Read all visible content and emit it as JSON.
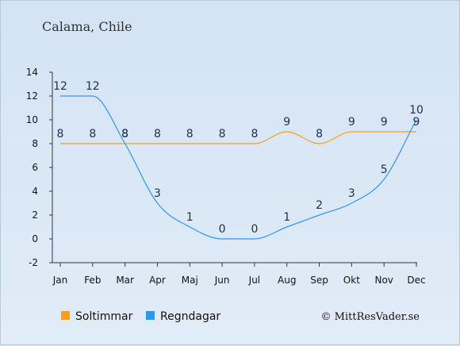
{
  "chart_data": {
    "type": "line",
    "title": "Calama, Chile",
    "categories": [
      "Jan",
      "Feb",
      "Mar",
      "Apr",
      "Maj",
      "Jun",
      "Jul",
      "Aug",
      "Sep",
      "Okt",
      "Nov",
      "Dec"
    ],
    "ylim": [
      -2,
      14
    ],
    "yticks": [
      -2,
      0,
      2,
      4,
      6,
      8,
      10,
      12,
      14
    ],
    "grid": false,
    "legend_position": "bottom-left",
    "series": [
      {
        "name": "Soltimmar",
        "color": "#f5a01a",
        "values": [
          8,
          8,
          8,
          8,
          8,
          8,
          8,
          9,
          8,
          9,
          9,
          9
        ]
      },
      {
        "name": "Regndagar",
        "color": "#2f96e8",
        "values": [
          12,
          12,
          8,
          3,
          1,
          0,
          0,
          1,
          2,
          3,
          5,
          10
        ]
      }
    ],
    "labels": [
      {
        "series": 0,
        "text": [
          "8",
          "8",
          "8",
          "8",
          "8",
          "8",
          "8",
          "9",
          "8",
          "9",
          "9",
          "9"
        ]
      },
      {
        "series": 1,
        "text": [
          "12",
          "12",
          "8",
          "3",
          "1",
          "0",
          "0",
          "1",
          "2",
          "3",
          "5",
          "10"
        ]
      }
    ],
    "credit": "© MittResVader.se"
  }
}
